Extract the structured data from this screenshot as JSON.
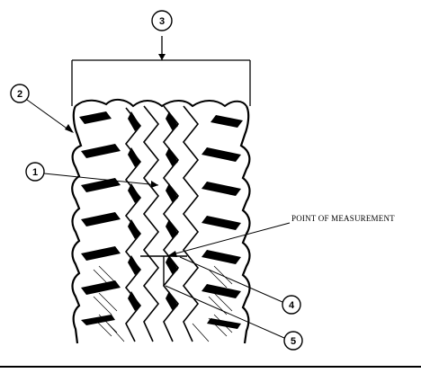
{
  "figure": {
    "measurement_label": "POINT OF MEASUREMENT",
    "callouts": [
      "1",
      "2",
      "3",
      "4",
      "5"
    ]
  },
  "colors": {
    "ink": "#000000",
    "paper": "#ffffff"
  }
}
